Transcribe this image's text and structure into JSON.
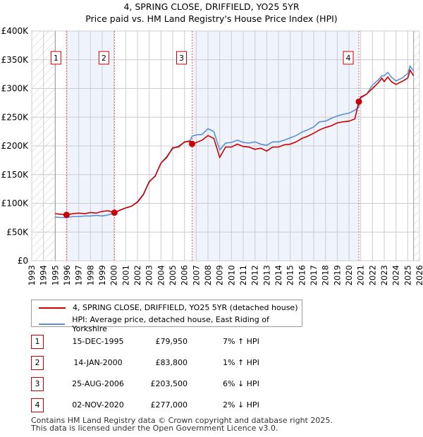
{
  "title": "4, SPRING CLOSE, DRIFFIELD, YO25 5YR",
  "subtitle": "Price paid vs. HM Land Registry's House Price Index (HPI)",
  "colors": {
    "property": "#cc0000",
    "hpi": "#5b8fd6",
    "shade": "#eef3fc"
  },
  "chart_data": {
    "type": "line",
    "xlim": [
      1993,
      2026
    ],
    "ylim": [
      0,
      400
    ],
    "yticks": [
      {
        "v": 0,
        "label": "£0"
      },
      {
        "v": 50,
        "label": "£50K"
      },
      {
        "v": 100,
        "label": "£100K"
      },
      {
        "v": 150,
        "label": "£150K"
      },
      {
        "v": 200,
        "label": "£200K"
      },
      {
        "v": 250,
        "label": "£250K"
      },
      {
        "v": 300,
        "label": "£300K"
      },
      {
        "v": 350,
        "label": "£350K"
      },
      {
        "v": 400,
        "label": "£400K"
      }
    ],
    "xticks": [
      "1993",
      "1994",
      "1995",
      "1996",
      "1997",
      "1998",
      "1999",
      "2000",
      "2001",
      "2002",
      "2003",
      "2004",
      "2005",
      "2006",
      "2007",
      "2008",
      "2009",
      "2010",
      "2011",
      "2012",
      "2013",
      "2014",
      "2015",
      "2016",
      "2017",
      "2018",
      "2019",
      "2020",
      "2021",
      "2022",
      "2023",
      "2024",
      "2025",
      "2026"
    ],
    "data_range": [
      1995,
      2025.5
    ],
    "series": [
      {
        "name": "4, SPRING CLOSE, DRIFFIELD, YO25 5YR (detached house)",
        "x": [
          1995,
          1995.96,
          1996.5,
          1997,
          1997.5,
          1998,
          1998.5,
          1999,
          1999.5,
          2000.04,
          2000.5,
          2001,
          2001.5,
          2002,
          2002.5,
          2003,
          2003.5,
          2004,
          2004.5,
          2005,
          2005.5,
          2006,
          2006.5,
          2006.65,
          2007,
          2007.5,
          2008,
          2008.5,
          2009,
          2009.5,
          2010,
          2010.5,
          2011,
          2011.5,
          2012,
          2012.5,
          2013,
          2013.5,
          2014,
          2014.5,
          2015,
          2015.5,
          2016,
          2016.5,
          2017,
          2017.5,
          2018,
          2018.5,
          2019,
          2019.5,
          2020,
          2020.5,
          2020.84,
          2021,
          2021.5,
          2022,
          2022.5,
          2022.8,
          2023,
          2023.3,
          2023.6,
          2024,
          2024.5,
          2025,
          2025.2,
          2025.5
        ],
        "y": [
          82,
          80,
          82,
          83,
          82,
          84,
          83,
          86,
          87,
          84,
          88,
          92,
          95,
          102,
          115,
          138,
          147,
          170,
          180,
          197,
          198,
          207,
          208,
          203.5,
          206,
          210,
          218,
          213,
          180,
          198,
          198,
          203,
          199,
          198,
          194,
          196,
          191,
          198,
          198,
          202,
          203,
          207,
          213,
          217,
          222,
          228,
          232,
          235,
          240,
          242,
          243,
          247,
          277,
          285,
          290,
          300,
          310,
          318,
          312,
          320,
          312,
          307,
          312,
          318,
          332,
          322
        ]
      },
      {
        "name": "HPI: Average price, detached house, East Riding of Yorkshire",
        "x": [
          1995,
          1995.96,
          1996.5,
          1997,
          1997.5,
          1998,
          1998.5,
          1999,
          1999.5,
          2000.04,
          2000.5,
          2001,
          2001.5,
          2002,
          2002.5,
          2003,
          2003.5,
          2004,
          2004.5,
          2005,
          2005.5,
          2006,
          2006.5,
          2006.65,
          2007,
          2007.5,
          2008,
          2008.5,
          2009,
          2009.5,
          2010,
          2010.5,
          2011,
          2011.5,
          2012,
          2012.5,
          2013,
          2013.5,
          2014,
          2014.5,
          2015,
          2015.5,
          2016,
          2016.5,
          2017,
          2017.5,
          2018,
          2018.5,
          2019,
          2019.5,
          2020,
          2020.5,
          2020.84,
          2021,
          2021.5,
          2022,
          2022.5,
          2022.8,
          2023,
          2023.3,
          2023.6,
          2024,
          2024.5,
          2025,
          2025.2,
          2025.5
        ],
        "y": [
          76,
          75,
          77,
          77,
          78,
          78,
          79,
          78,
          80,
          83,
          88,
          92,
          95,
          103,
          116,
          137,
          148,
          170,
          182,
          195,
          200,
          206,
          210,
          217,
          219,
          220,
          230,
          225,
          193,
          205,
          206,
          210,
          206,
          205,
          207,
          203,
          201,
          207,
          207,
          210,
          214,
          218,
          224,
          228,
          233,
          242,
          243,
          248,
          252,
          255,
          257,
          262,
          268,
          283,
          290,
          306,
          315,
          322,
          322,
          328,
          320,
          313,
          318,
          326,
          339,
          330
        ]
      }
    ],
    "sales": [
      {
        "label": "1",
        "x": 1995.96,
        "y": 79.95
      },
      {
        "label": "2",
        "x": 2000.04,
        "y": 83.8
      },
      {
        "label": "3",
        "x": 2006.65,
        "y": 203.5
      },
      {
        "label": "4",
        "x": 2020.84,
        "y": 277
      }
    ]
  },
  "legend": {
    "property": "4, SPRING CLOSE, DRIFFIELD, YO25 5YR (detached house)",
    "hpi": "HPI: Average price, detached house, East Riding of Yorkshire"
  },
  "transactions": [
    {
      "num": "1",
      "date": "15-DEC-1995",
      "price": "£79,950",
      "hpi": "7% ↑ HPI"
    },
    {
      "num": "2",
      "date": "14-JAN-2000",
      "price": "£83,800",
      "hpi": "1% ↑ HPI"
    },
    {
      "num": "3",
      "date": "25-AUG-2006",
      "price": "£203,500",
      "hpi": "6% ↓ HPI"
    },
    {
      "num": "4",
      "date": "02-NOV-2020",
      "price": "£277,000",
      "hpi": "2% ↓ HPI"
    }
  ],
  "footer": [
    "Contains HM Land Registry data © Crown copyright and database right 2025.",
    "This data is licensed under the Open Government Licence v3.0."
  ]
}
